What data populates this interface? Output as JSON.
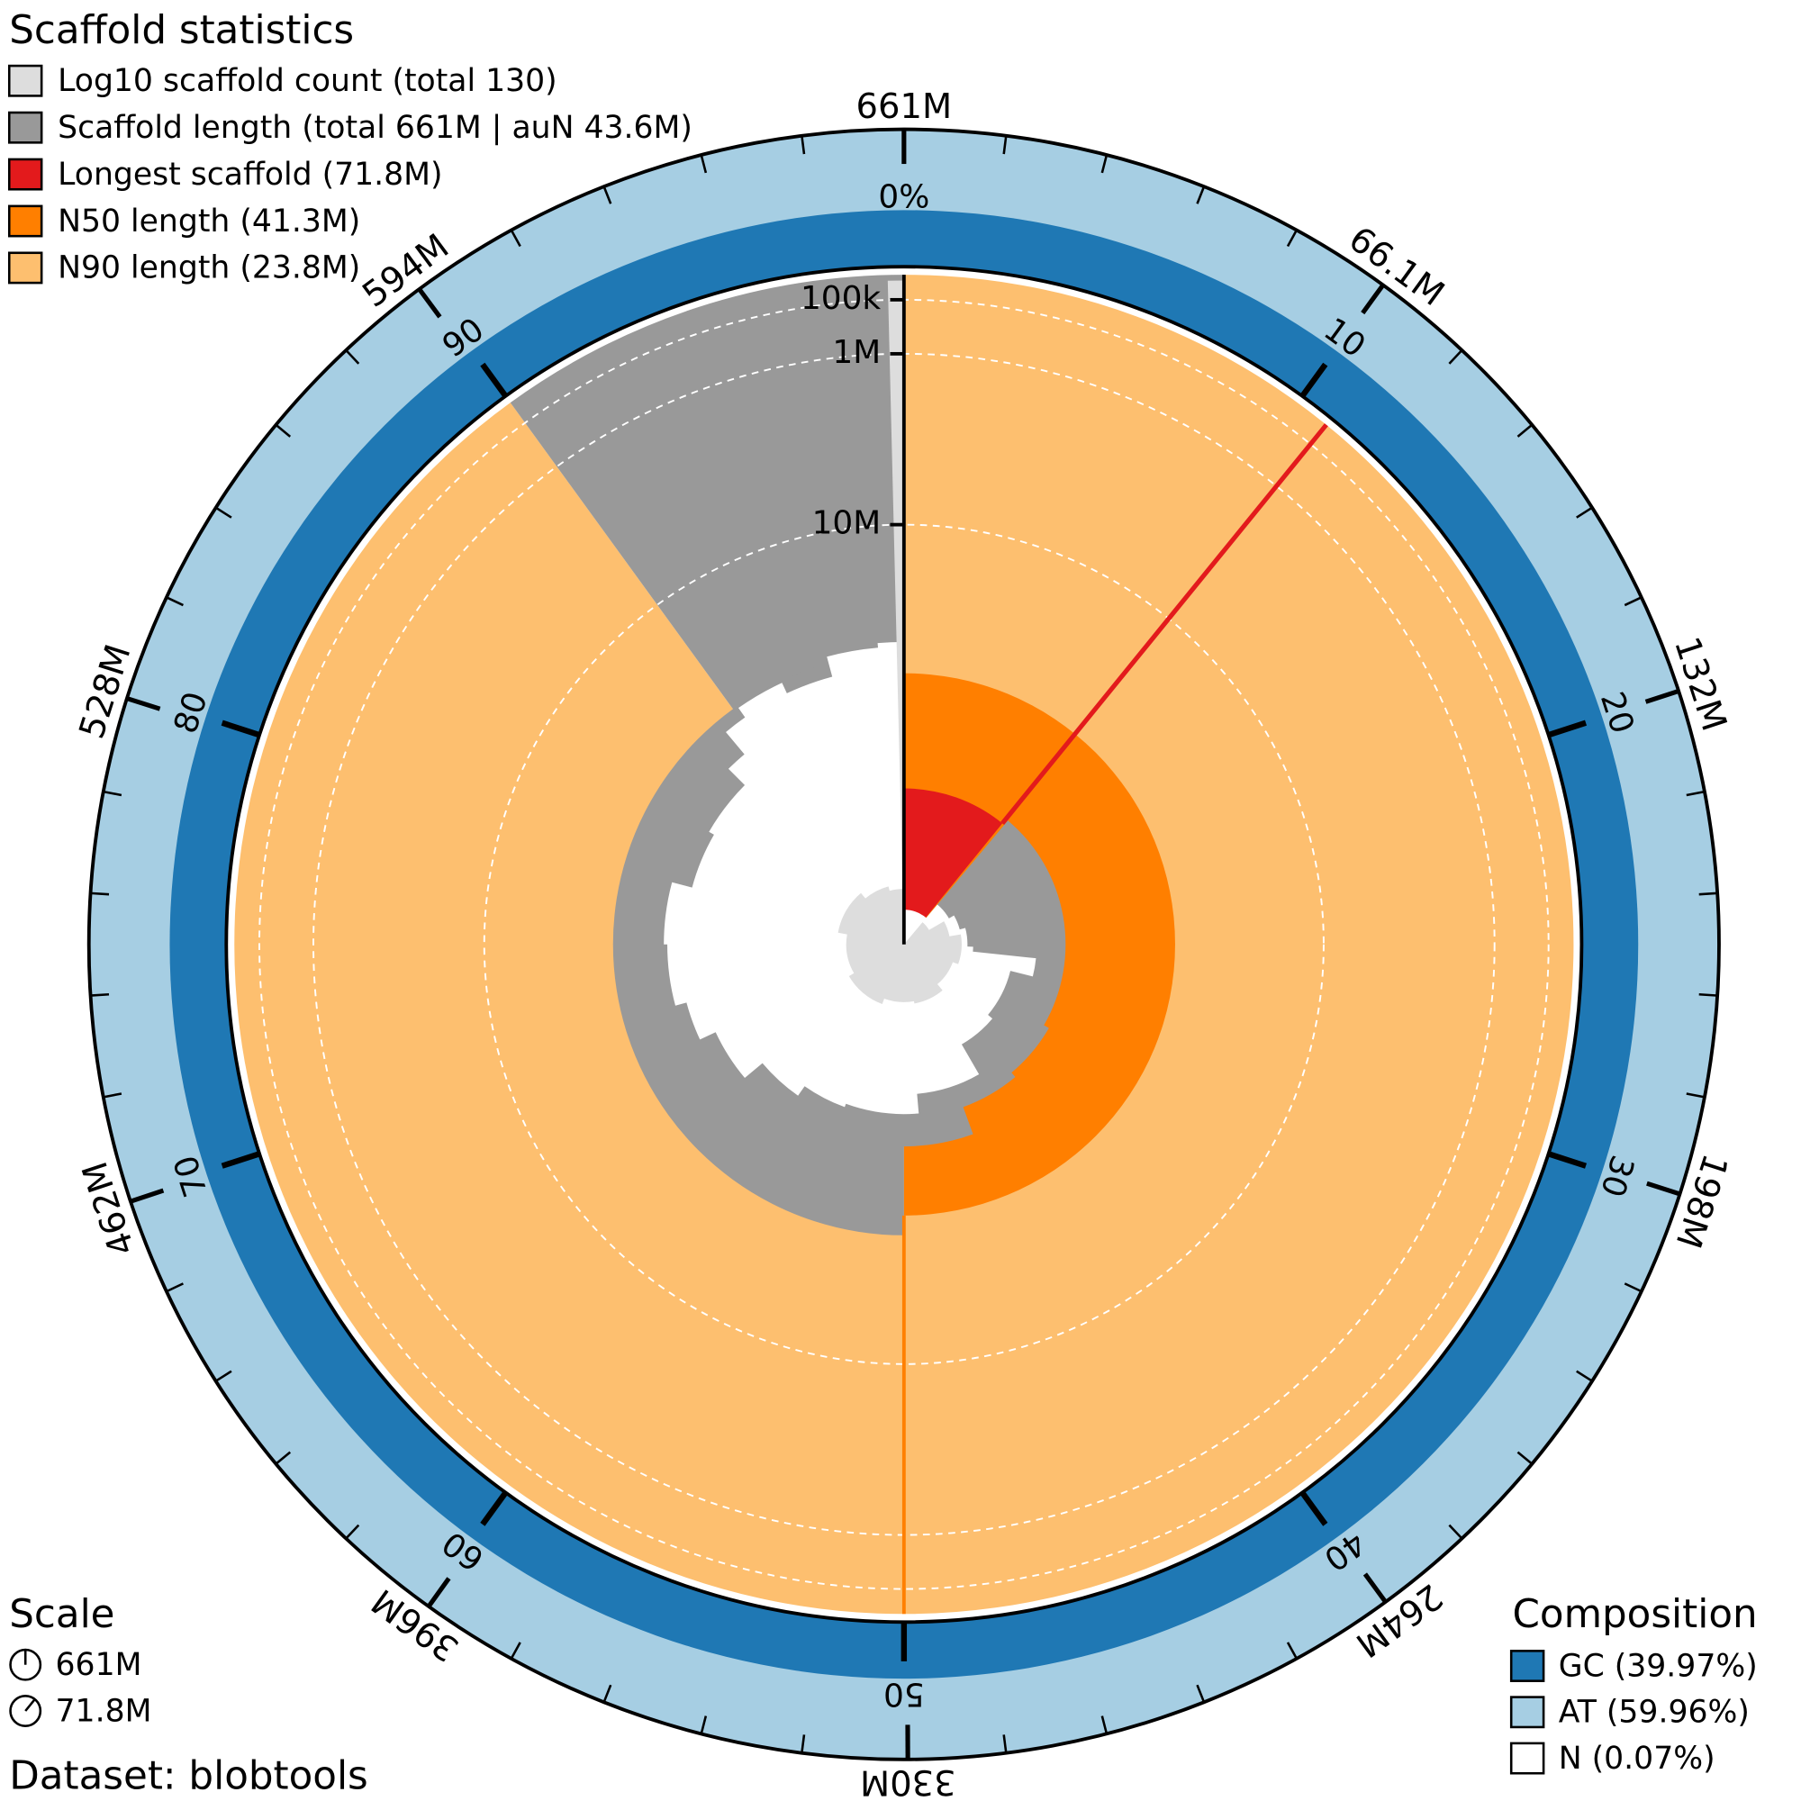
{
  "chart_data": {
    "type": "snail",
    "title": "Scaffold statistics",
    "legend": [
      {
        "name": "Log10 scaffold count (total 130)",
        "color": "#dddddd"
      },
      {
        "name": "Scaffold length (total 661M | auN 43.6M)",
        "color": "#999999"
      },
      {
        "name": "Longest scaffold (71.8M)",
        "color": "#e31a1c"
      },
      {
        "name": "N50 length (41.3M)",
        "color": "#ff7f00"
      },
      {
        "name": "N90 length (23.8M)",
        "color": "#fdbf6f"
      }
    ],
    "total_length": 661000000,
    "longest": 71800000,
    "n50_length": 41300000,
    "n50_percent": 50,
    "n90_percent": 90,
    "length_ticks": [
      {
        "value": 66100000,
        "label": "66.1M"
      },
      {
        "value": 132000000,
        "label": "132M"
      },
      {
        "value": 198000000,
        "label": "198M"
      },
      {
        "value": 264000000,
        "label": "264M"
      },
      {
        "value": 330000000,
        "label": "330M"
      },
      {
        "value": 396000000,
        "label": "396M"
      },
      {
        "value": 462000000,
        "label": "462M"
      },
      {
        "value": 528000000,
        "label": "528M"
      },
      {
        "value": 594000000,
        "label": "594M"
      },
      {
        "value": 661000000,
        "label": "661M"
      }
    ],
    "percent_ticks": [
      10,
      20,
      30,
      40,
      50,
      60,
      70,
      80,
      90
    ],
    "gc_axis_label": "0%",
    "radial_ticks": [
      {
        "value": 100000,
        "label": "100k"
      },
      {
        "value": 1000000,
        "label": "1M"
      },
      {
        "value": 10000000,
        "label": "10M"
      }
    ],
    "scale_title": "Scale",
    "scale_items": [
      "661M",
      "71.8M"
    ],
    "composition_title": "Composition",
    "composition": [
      {
        "name": "GC (39.97%)",
        "color": "#1f78b4"
      },
      {
        "name": "AT (59.96%)",
        "color": "#a6cee3"
      },
      {
        "name": "N (0.07%)",
        "color": "#ffffff"
      }
    ],
    "dataset": "Dataset: blobtools"
  }
}
